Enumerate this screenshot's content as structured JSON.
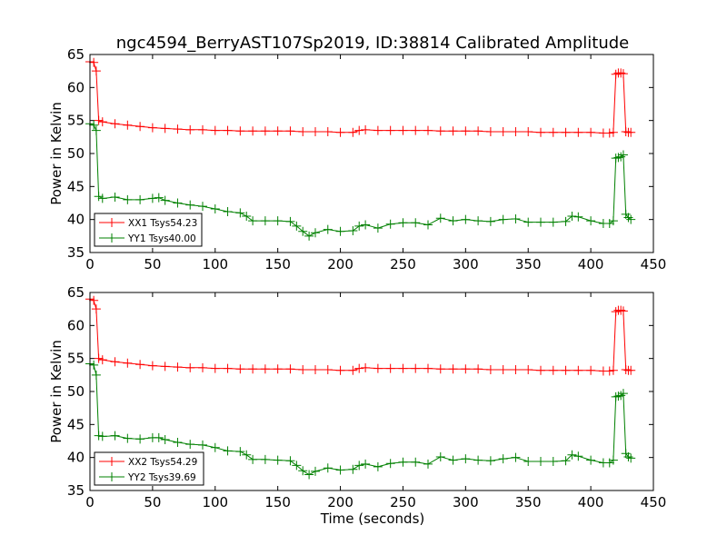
{
  "figure_title": "ngc4594_BerryAST107Sp2019, ID:38814 Calibrated Amplitude",
  "colors": {
    "xx": "#ff0000",
    "yy": "#008000",
    "axes": "#000000",
    "background": "#ffffff"
  },
  "chart_data": [
    {
      "type": "line",
      "marker": "plus",
      "xlabel": "",
      "ylabel": "Power in Kelvin",
      "xlim": [
        0,
        450
      ],
      "ylim": [
        35,
        65
      ],
      "xticks": [
        0,
        50,
        100,
        150,
        200,
        250,
        300,
        350,
        400,
        450
      ],
      "yticks": [
        35,
        40,
        45,
        50,
        55,
        60,
        65
      ],
      "legend_position": "lower-left",
      "series": [
        {
          "name": "XX1 Tsys54.23",
          "color": "#ff0000",
          "points": [
            [
              0,
              63.9
            ],
            [
              3,
              63.8
            ],
            [
              5,
              62.5
            ],
            [
              7,
              55.0
            ],
            [
              10,
              54.8
            ],
            [
              20,
              54.5
            ],
            [
              30,
              54.3
            ],
            [
              40,
              54.1
            ],
            [
              50,
              53.9
            ],
            [
              60,
              53.8
            ],
            [
              70,
              53.7
            ],
            [
              80,
              53.6
            ],
            [
              90,
              53.6
            ],
            [
              100,
              53.5
            ],
            [
              110,
              53.5
            ],
            [
              120,
              53.4
            ],
            [
              130,
              53.4
            ],
            [
              140,
              53.4
            ],
            [
              150,
              53.4
            ],
            [
              160,
              53.4
            ],
            [
              170,
              53.3
            ],
            [
              180,
              53.3
            ],
            [
              190,
              53.3
            ],
            [
              200,
              53.2
            ],
            [
              210,
              53.2
            ],
            [
              215,
              53.5
            ],
            [
              220,
              53.6
            ],
            [
              230,
              53.5
            ],
            [
              240,
              53.5
            ],
            [
              250,
              53.5
            ],
            [
              260,
              53.5
            ],
            [
              270,
              53.5
            ],
            [
              280,
              53.4
            ],
            [
              290,
              53.4
            ],
            [
              300,
              53.4
            ],
            [
              310,
              53.4
            ],
            [
              320,
              53.3
            ],
            [
              330,
              53.3
            ],
            [
              340,
              53.3
            ],
            [
              350,
              53.3
            ],
            [
              360,
              53.2
            ],
            [
              370,
              53.2
            ],
            [
              380,
              53.2
            ],
            [
              390,
              53.2
            ],
            [
              400,
              53.2
            ],
            [
              410,
              53.1
            ],
            [
              415,
              53.1
            ],
            [
              418,
              53.2
            ],
            [
              420,
              62.0
            ],
            [
              422,
              62.2
            ],
            [
              424,
              62.2
            ],
            [
              426,
              62.1
            ],
            [
              428,
              53.3
            ],
            [
              430,
              53.2
            ],
            [
              432,
              53.2
            ]
          ]
        },
        {
          "name": "YY1 Tsys40.00",
          "color": "#008000",
          "points": [
            [
              0,
              54.5
            ],
            [
              3,
              54.3
            ],
            [
              5,
              53.5
            ],
            [
              7,
              43.5
            ],
            [
              10,
              43.2
            ],
            [
              20,
              43.4
            ],
            [
              30,
              43.0
            ],
            [
              40,
              43.0
            ],
            [
              50,
              43.2
            ],
            [
              55,
              43.3
            ],
            [
              60,
              42.9
            ],
            [
              70,
              42.5
            ],
            [
              80,
              42.2
            ],
            [
              90,
              42.0
            ],
            [
              100,
              41.6
            ],
            [
              110,
              41.2
            ],
            [
              120,
              41.0
            ],
            [
              125,
              40.5
            ],
            [
              130,
              39.8
            ],
            [
              140,
              39.8
            ],
            [
              150,
              39.8
            ],
            [
              160,
              39.7
            ],
            [
              165,
              39.0
            ],
            [
              170,
              38.2
            ],
            [
              175,
              37.5
            ],
            [
              180,
              38.0
            ],
            [
              190,
              38.5
            ],
            [
              200,
              38.2
            ],
            [
              210,
              38.3
            ],
            [
              215,
              39.0
            ],
            [
              220,
              39.2
            ],
            [
              230,
              38.7
            ],
            [
              240,
              39.3
            ],
            [
              250,
              39.5
            ],
            [
              260,
              39.5
            ],
            [
              270,
              39.2
            ],
            [
              280,
              40.2
            ],
            [
              290,
              39.8
            ],
            [
              300,
              40.0
            ],
            [
              310,
              39.8
            ],
            [
              320,
              39.7
            ],
            [
              330,
              40.0
            ],
            [
              340,
              40.1
            ],
            [
              350,
              39.6
            ],
            [
              360,
              39.6
            ],
            [
              370,
              39.6
            ],
            [
              380,
              39.7
            ],
            [
              385,
              40.5
            ],
            [
              390,
              40.4
            ],
            [
              400,
              39.8
            ],
            [
              410,
              39.4
            ],
            [
              415,
              39.4
            ],
            [
              418,
              39.8
            ],
            [
              420,
              49.3
            ],
            [
              422,
              49.4
            ],
            [
              424,
              49.5
            ],
            [
              426,
              49.8
            ],
            [
              428,
              40.8
            ],
            [
              430,
              40.3
            ],
            [
              432,
              40.0
            ]
          ]
        }
      ]
    },
    {
      "type": "line",
      "marker": "plus",
      "xlabel": "Time (seconds)",
      "ylabel": "Power in Kelvin",
      "xlim": [
        0,
        450
      ],
      "ylim": [
        35,
        65
      ],
      "xticks": [
        0,
        50,
        100,
        150,
        200,
        250,
        300,
        350,
        400,
        450
      ],
      "yticks": [
        35,
        40,
        45,
        50,
        55,
        60,
        65
      ],
      "legend_position": "lower-left",
      "series": [
        {
          "name": "XX2 Tsys54.29",
          "color": "#ff0000",
          "points": [
            [
              0,
              64.0
            ],
            [
              3,
              63.8
            ],
            [
              5,
              62.5
            ],
            [
              7,
              55.0
            ],
            [
              10,
              54.8
            ],
            [
              20,
              54.5
            ],
            [
              30,
              54.3
            ],
            [
              40,
              54.1
            ],
            [
              50,
              53.9
            ],
            [
              60,
              53.8
            ],
            [
              70,
              53.7
            ],
            [
              80,
              53.6
            ],
            [
              90,
              53.6
            ],
            [
              100,
              53.5
            ],
            [
              110,
              53.5
            ],
            [
              120,
              53.4
            ],
            [
              130,
              53.4
            ],
            [
              140,
              53.4
            ],
            [
              150,
              53.4
            ],
            [
              160,
              53.4
            ],
            [
              170,
              53.3
            ],
            [
              180,
              53.3
            ],
            [
              190,
              53.3
            ],
            [
              200,
              53.2
            ],
            [
              210,
              53.2
            ],
            [
              215,
              53.5
            ],
            [
              220,
              53.6
            ],
            [
              230,
              53.5
            ],
            [
              240,
              53.5
            ],
            [
              250,
              53.5
            ],
            [
              260,
              53.5
            ],
            [
              270,
              53.5
            ],
            [
              280,
              53.4
            ],
            [
              290,
              53.4
            ],
            [
              300,
              53.4
            ],
            [
              310,
              53.4
            ],
            [
              320,
              53.3
            ],
            [
              330,
              53.3
            ],
            [
              340,
              53.3
            ],
            [
              350,
              53.3
            ],
            [
              360,
              53.2
            ],
            [
              370,
              53.2
            ],
            [
              380,
              53.2
            ],
            [
              390,
              53.2
            ],
            [
              400,
              53.2
            ],
            [
              410,
              53.1
            ],
            [
              415,
              53.1
            ],
            [
              418,
              53.2
            ],
            [
              420,
              62.1
            ],
            [
              422,
              62.3
            ],
            [
              424,
              62.3
            ],
            [
              426,
              62.2
            ],
            [
              428,
              53.3
            ],
            [
              430,
              53.2
            ],
            [
              432,
              53.2
            ]
          ]
        },
        {
          "name": "YY2 Tsys39.69",
          "color": "#008000",
          "points": [
            [
              0,
              54.2
            ],
            [
              3,
              54.0
            ],
            [
              5,
              52.5
            ],
            [
              7,
              43.3
            ],
            [
              10,
              43.2
            ],
            [
              20,
              43.3
            ],
            [
              30,
              42.9
            ],
            [
              40,
              42.8
            ],
            [
              50,
              43.0
            ],
            [
              55,
              43.0
            ],
            [
              60,
              42.7
            ],
            [
              70,
              42.3
            ],
            [
              80,
              42.0
            ],
            [
              90,
              41.9
            ],
            [
              100,
              41.5
            ],
            [
              110,
              41.0
            ],
            [
              120,
              40.9
            ],
            [
              125,
              40.4
            ],
            [
              130,
              39.7
            ],
            [
              140,
              39.7
            ],
            [
              150,
              39.6
            ],
            [
              160,
              39.5
            ],
            [
              165,
              38.8
            ],
            [
              170,
              38.0
            ],
            [
              175,
              37.4
            ],
            [
              180,
              37.9
            ],
            [
              190,
              38.4
            ],
            [
              200,
              38.1
            ],
            [
              210,
              38.2
            ],
            [
              215,
              38.8
            ],
            [
              220,
              39.0
            ],
            [
              230,
              38.6
            ],
            [
              240,
              39.1
            ],
            [
              250,
              39.3
            ],
            [
              260,
              39.3
            ],
            [
              270,
              39.0
            ],
            [
              280,
              40.1
            ],
            [
              290,
              39.6
            ],
            [
              300,
              39.8
            ],
            [
              310,
              39.6
            ],
            [
              320,
              39.5
            ],
            [
              330,
              39.8
            ],
            [
              340,
              40.0
            ],
            [
              350,
              39.4
            ],
            [
              360,
              39.4
            ],
            [
              370,
              39.4
            ],
            [
              380,
              39.5
            ],
            [
              385,
              40.4
            ],
            [
              390,
              40.2
            ],
            [
              400,
              39.6
            ],
            [
              410,
              39.2
            ],
            [
              415,
              39.2
            ],
            [
              418,
              39.6
            ],
            [
              420,
              49.2
            ],
            [
              422,
              49.3
            ],
            [
              424,
              49.4
            ],
            [
              426,
              49.7
            ],
            [
              428,
              40.6
            ],
            [
              430,
              40.1
            ],
            [
              432,
              39.9
            ]
          ]
        }
      ]
    }
  ]
}
